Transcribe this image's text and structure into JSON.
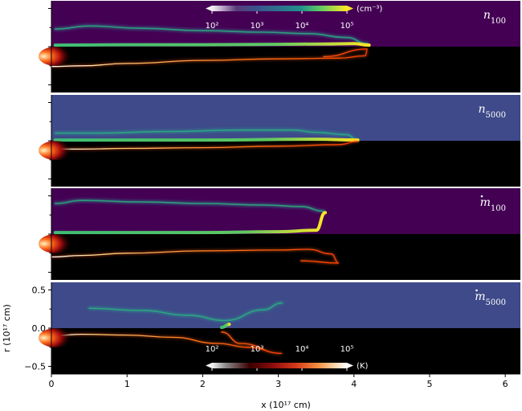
{
  "chart_data": {
    "type": "heatmap",
    "title": "",
    "xlabel": "x (10¹⁷ cm)",
    "ylabel": "r (10¹⁷ cm)",
    "xlim": [
      0,
      6.2
    ],
    "ylim": [
      -0.6,
      0.6
    ],
    "x_ticks": [
      0,
      1,
      2,
      3,
      4,
      5,
      6
    ],
    "y_ticks": [
      0.5,
      0.0,
      -0.5
    ],
    "x_tick_labels": [
      "0",
      "1",
      "2",
      "3",
      "4",
      "5",
      "6"
    ],
    "y_tick_labels": [
      "0.5",
      "0.0",
      "−0.5"
    ],
    "panels": [
      {
        "label_main": "n",
        "label_sub": "100",
        "dot": false,
        "bg_color": "#440154",
        "upper_x": [
          0.05,
          0.5,
          1.2,
          2.0,
          2.8,
          3.4,
          3.9,
          4.18
        ],
        "upper_r": [
          0.23,
          0.27,
          0.24,
          0.21,
          0.19,
          0.17,
          0.12,
          0.04
        ],
        "band_x": [
          0.05,
          1.0,
          2.0,
          3.0,
          3.6,
          4.0,
          4.2
        ],
        "band_r": [
          0.02,
          0.025,
          0.025,
          0.03,
          0.035,
          0.04,
          0.02
        ],
        "lower_x": [
          0.0,
          0.4,
          1.0,
          2.0,
          3.0,
          3.8,
          4.15,
          4.18,
          3.6
        ],
        "lower_r": [
          -0.26,
          -0.25,
          -0.22,
          -0.18,
          -0.16,
          -0.15,
          -0.12,
          -0.03,
          -0.13
        ]
      },
      {
        "label_main": "n",
        "label_sub": "5000",
        "dot": false,
        "bg_color": "#3e4a89",
        "upper_x": [
          0.05,
          0.6,
          1.5,
          2.5,
          3.0,
          3.2,
          3.5,
          3.9,
          4.05
        ],
        "upper_r": [
          0.1,
          0.1,
          0.12,
          0.14,
          0.14,
          0.14,
          0.11,
          0.08,
          0.01
        ],
        "band_x": [
          0.05,
          2.0,
          3.5,
          4.05
        ],
        "band_r": [
          0.01,
          0.01,
          0.02,
          0.01
        ],
        "lower_x": [
          0.0,
          0.4,
          1.0,
          2.0,
          3.0,
          3.8,
          4.05
        ],
        "lower_r": [
          -0.11,
          -0.11,
          -0.1,
          -0.09,
          -0.07,
          -0.05,
          -0.01
        ]
      },
      {
        "label_main": "m",
        "label_sub": "100",
        "dot": true,
        "bg_color": "#440154",
        "upper_x": [
          0.05,
          0.4,
          1.2,
          2.0,
          2.8,
          3.3,
          3.6
        ],
        "upper_r": [
          0.4,
          0.44,
          0.42,
          0.4,
          0.38,
          0.36,
          0.3
        ],
        "band_x": [
          0.05,
          1.0,
          2.0,
          3.0,
          3.5,
          3.62
        ],
        "band_r": [
          0.02,
          0.02,
          0.02,
          0.03,
          0.05,
          0.28
        ],
        "lower_x": [
          0.0,
          0.4,
          1.0,
          2.0,
          3.0,
          3.4,
          3.7,
          3.8,
          3.3
        ],
        "lower_r": [
          -0.3,
          -0.28,
          -0.25,
          -0.22,
          -0.21,
          -0.2,
          -0.26,
          -0.38,
          -0.35
        ]
      },
      {
        "label_main": "m",
        "label_sub": "5000",
        "dot": true,
        "bg_color": "#3e4a89",
        "upper_x": [
          0.5,
          1.2,
          1.8,
          2.3,
          2.8,
          3.05
        ],
        "upper_r": [
          0.26,
          0.23,
          0.17,
          0.1,
          0.24,
          0.33
        ],
        "band_x": [
          2.25,
          2.35
        ],
        "band_r": [
          0.01,
          0.05
        ],
        "lower_x": [
          0.0,
          0.4,
          1.0,
          1.6,
          2.2,
          2.6,
          3.05,
          2.5,
          2.25
        ],
        "lower_r": [
          -0.1,
          -0.08,
          -0.09,
          -0.12,
          -0.2,
          -0.25,
          -0.33,
          -0.2,
          -0.05
        ]
      }
    ],
    "colorbar_density": {
      "colormap": "viridis",
      "tick_labels": [
        "10²",
        "10³",
        "10⁴",
        "10⁵"
      ],
      "unit": "(cm⁻³)",
      "placement": "top of first panel"
    },
    "colorbar_temperature": {
      "colormap": "gist_heat",
      "tick_labels": [
        "10²",
        "10³",
        "10⁴",
        "10⁵"
      ],
      "unit": "(K)",
      "placement": "bottom of last panel"
    }
  }
}
